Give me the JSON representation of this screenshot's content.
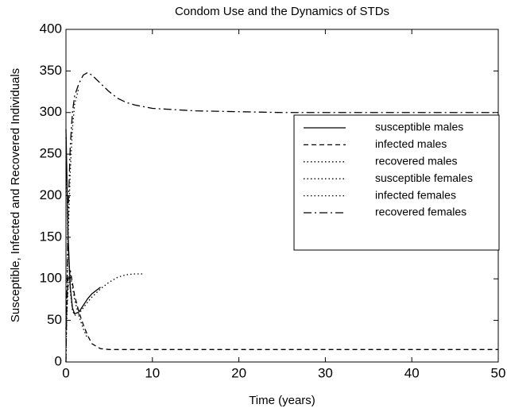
{
  "chart_data": {
    "type": "line",
    "title": "Condom Use and the Dynamics of STDs",
    "xlabel": "Time (years)",
    "ylabel": "Susceptible, Infected and Recovered Individuals",
    "x": [
      0,
      0.25,
      0.5,
      0.75,
      1,
      1.5,
      2,
      2.5,
      3,
      4,
      5,
      6,
      7,
      8,
      9,
      10,
      15,
      20,
      25,
      30,
      35,
      40,
      45,
      50
    ],
    "series": [
      {
        "name": "susceptible males",
        "color": "#000000",
        "style": "solid",
        "values": [
          280,
          150,
          90,
          65,
          58,
          60,
          68,
          76,
          82,
          90,
          null,
          null,
          null,
          null,
          null,
          null,
          null,
          null,
          null,
          null,
          null,
          null,
          null,
          null
        ]
      },
      {
        "name": "infected males",
        "color": "#000000",
        "style": "dashed",
        "values": [
          40,
          100,
          110,
          95,
          80,
          60,
          45,
          32,
          22,
          16,
          15,
          15,
          15,
          15,
          15,
          15,
          15,
          15,
          15,
          15,
          15,
          15,
          15,
          15
        ]
      },
      {
        "name": "recovered males",
        "color": "#000000",
        "style": "dotted",
        "values": [
          0,
          150,
          230,
          280,
          310,
          330,
          null,
          null,
          null,
          null,
          null,
          null,
          null,
          null,
          null,
          null,
          null,
          null,
          null,
          null,
          null,
          null,
          null,
          null
        ]
      },
      {
        "name": "susceptible females",
        "color": "#000000",
        "style": "dotted",
        "values": [
          270,
          140,
          85,
          62,
          56,
          58,
          65,
          72,
          78,
          88,
          96,
          102,
          105,
          106,
          106,
          null,
          null,
          null,
          null,
          null,
          null,
          null,
          null,
          null
        ]
      },
      {
        "name": "infected females",
        "color": "#000000",
        "style": "dotted",
        "values": [
          35,
          90,
          105,
          90,
          75,
          55,
          40,
          28,
          null,
          null,
          null,
          null,
          null,
          null,
          null,
          null,
          null,
          null,
          null,
          null,
          null,
          null,
          null,
          null
        ]
      },
      {
        "name": "recovered females",
        "color": "#000000",
        "style": "dashdot",
        "values": [
          0,
          180,
          260,
          300,
          320,
          335,
          345,
          348,
          345,
          335,
          325,
          317,
          312,
          309,
          307,
          305,
          302,
          301,
          300,
          300,
          300,
          300,
          300,
          300
        ]
      }
    ],
    "xlim": [
      0,
      50
    ],
    "xticks": [
      0,
      10,
      20,
      30,
      40,
      50
    ],
    "ylim": [
      0,
      400
    ],
    "yticks": [
      0,
      50,
      100,
      150,
      200,
      250,
      300,
      350,
      400
    ],
    "legend": "right"
  }
}
